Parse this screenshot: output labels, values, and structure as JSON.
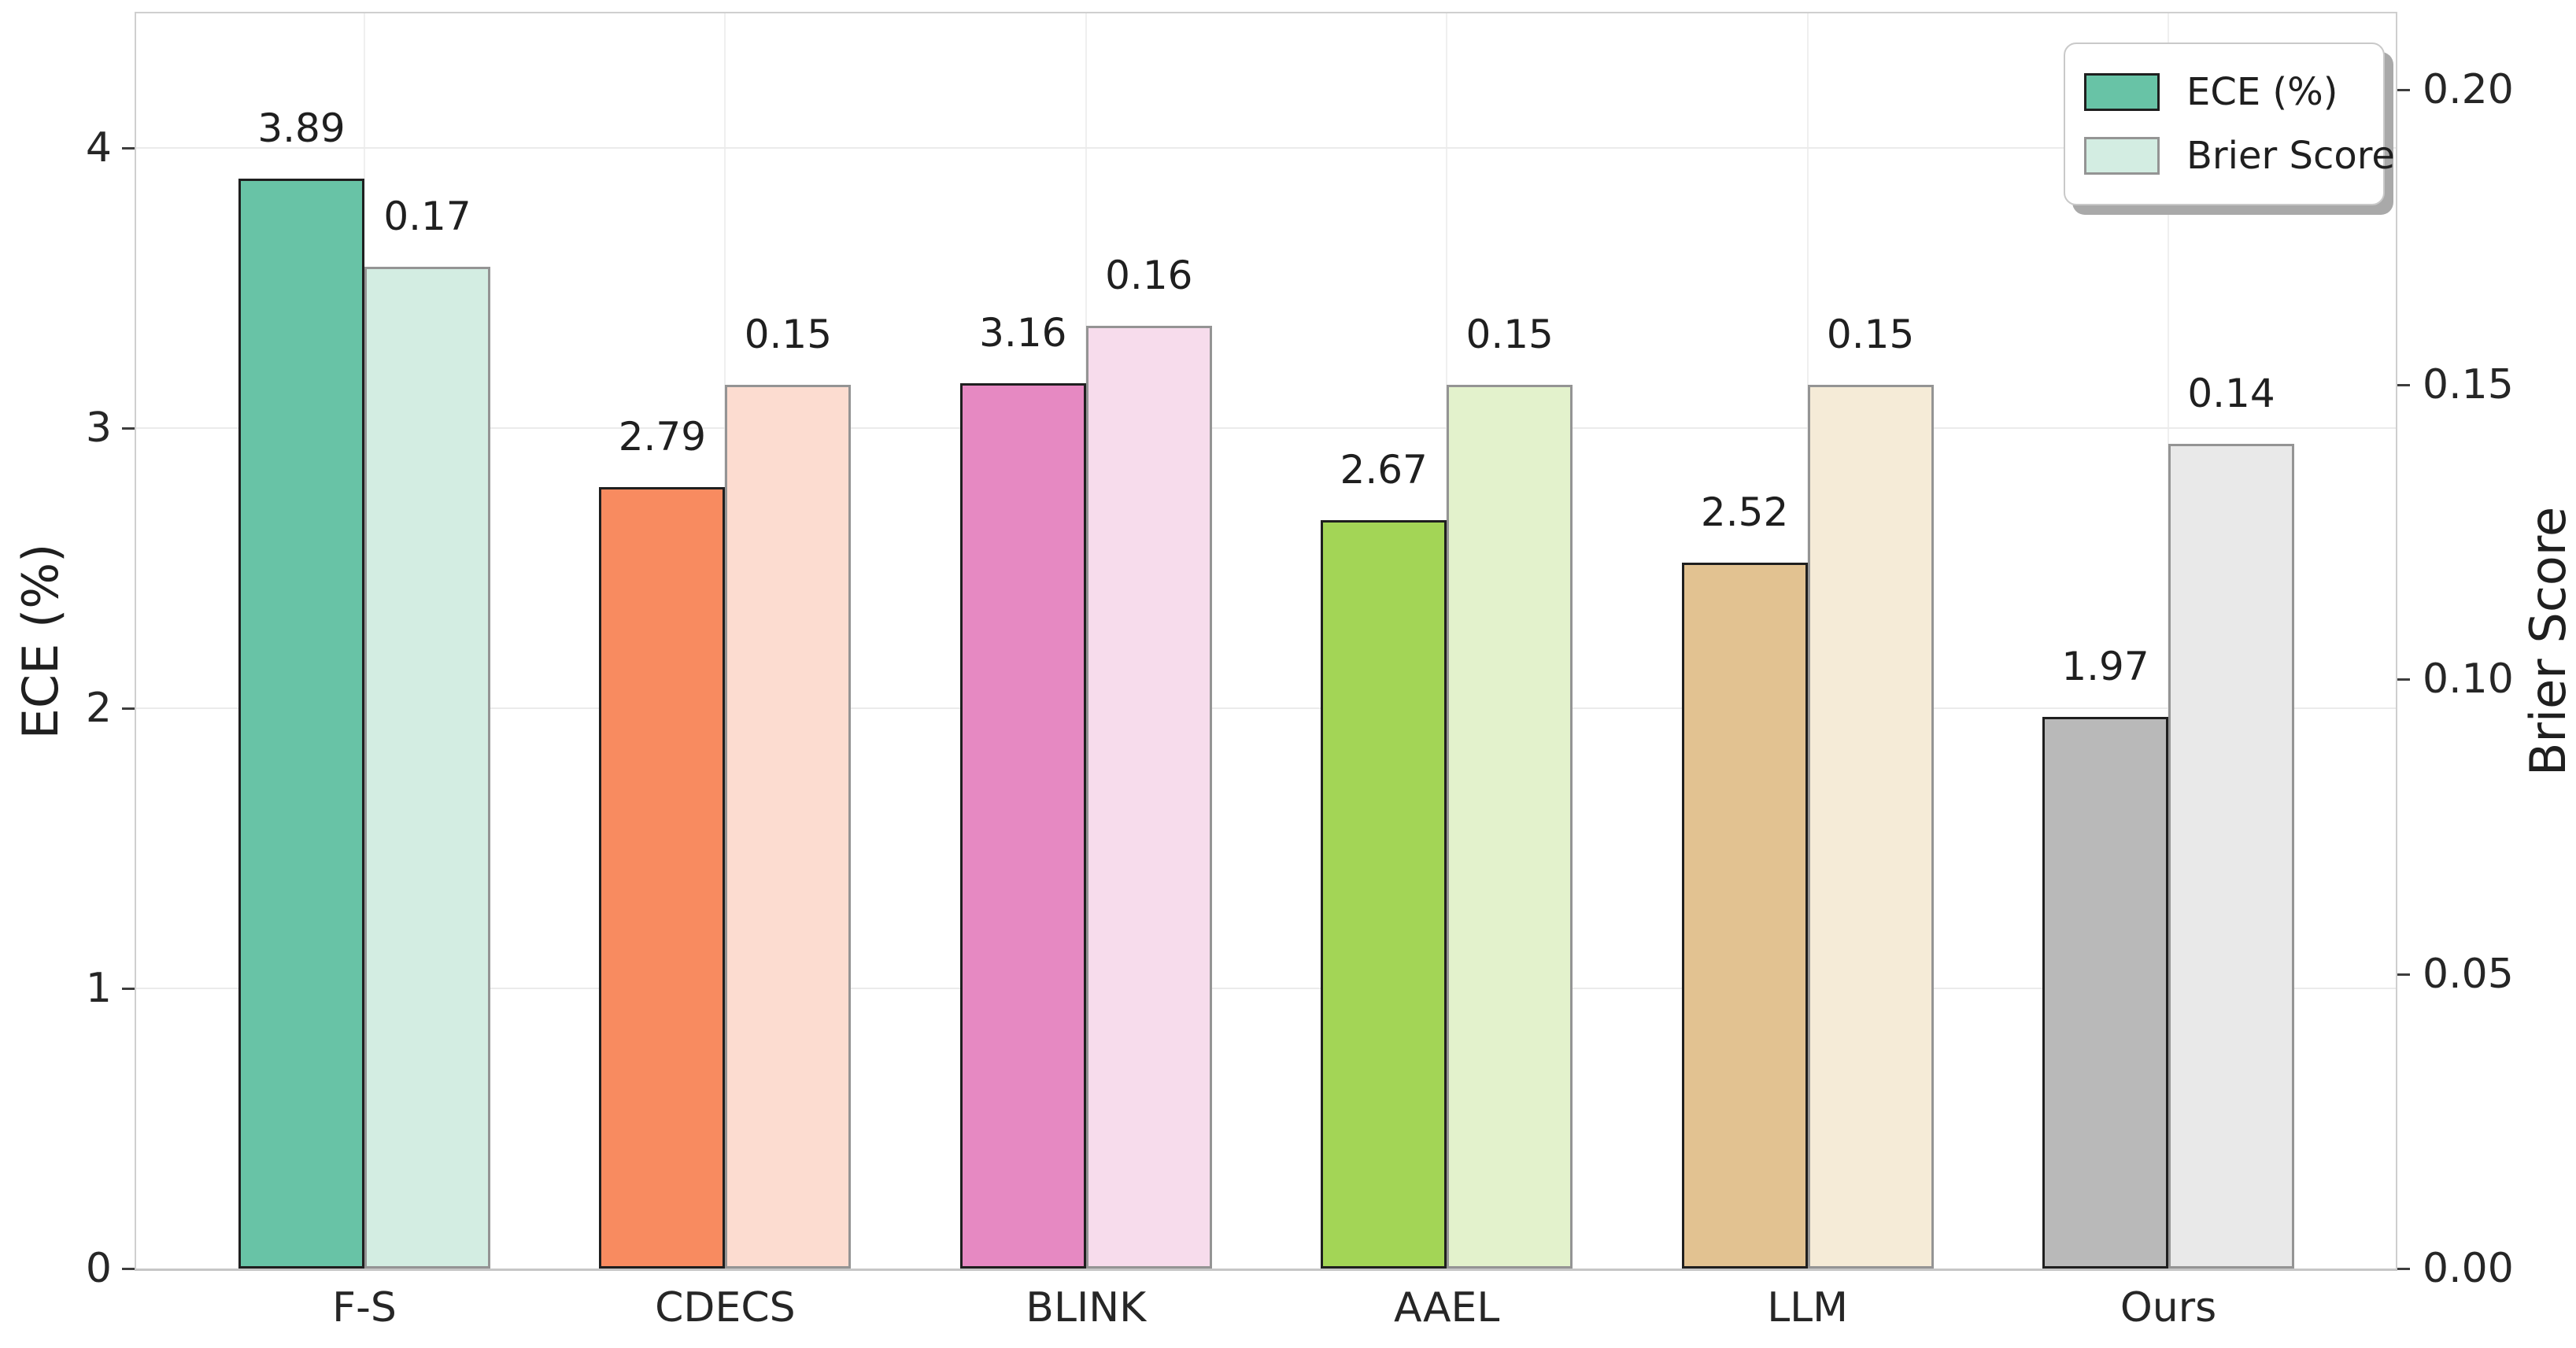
{
  "chart_data": {
    "type": "bar",
    "title": "",
    "categories": [
      "F-S",
      "CDECS",
      "BLINK",
      "AAEL",
      "LLM",
      "Ours"
    ],
    "series": [
      {
        "name": "ECE (%)",
        "axis": "left",
        "values": [
          3.89,
          2.79,
          3.16,
          2.67,
          2.52,
          1.97
        ]
      },
      {
        "name": "Brier Score",
        "axis": "right",
        "values": [
          0.17,
          0.15,
          0.16,
          0.15,
          0.15,
          0.14
        ]
      }
    ],
    "palette": [
      {
        "category": "F-S",
        "ece_fill": "#68c3a6",
        "brier_fill": "#d3ede2"
      },
      {
        "category": "CDECS",
        "ece_fill": "#f88b60",
        "brier_fill": "#fcdcd0"
      },
      {
        "category": "BLINK",
        "ece_fill": "#e689c2",
        "brier_fill": "#f7dcec"
      },
      {
        "category": "AAEL",
        "ece_fill": "#a3d556",
        "brier_fill": "#e3f2cc"
      },
      {
        "category": "LLM",
        "ece_fill": "#e2c291",
        "brier_fill": "#f5ebd7"
      },
      {
        "category": "Ours",
        "ece_fill": "#b9b9b9",
        "brier_fill": "#e9e9e9"
      }
    ],
    "edge_colors": {
      "ece": "#1f1f1f",
      "brier": "#949494"
    },
    "left_axis": {
      "label": "ECE (%)",
      "ticks": [
        0,
        1,
        2,
        3,
        4
      ],
      "range": [
        0,
        4.48
      ]
    },
    "right_axis": {
      "label": "Brier Score",
      "tick_labels": [
        "0.00",
        "0.05",
        "0.10",
        "0.15",
        "0.20"
      ],
      "tick_values": [
        0,
        0.05,
        0.1,
        0.15,
        0.2
      ],
      "range": [
        0,
        0.213
      ]
    },
    "legend": {
      "position": "upper right",
      "entries": [
        "ECE (%)",
        "Brier Score"
      ],
      "swatches": [
        {
          "fill": "#68c3a6",
          "edge": "#1f1f1f"
        },
        {
          "fill": "#d3ede2",
          "edge": "#949494"
        }
      ]
    },
    "grid": true,
    "background": "#ffffff"
  }
}
